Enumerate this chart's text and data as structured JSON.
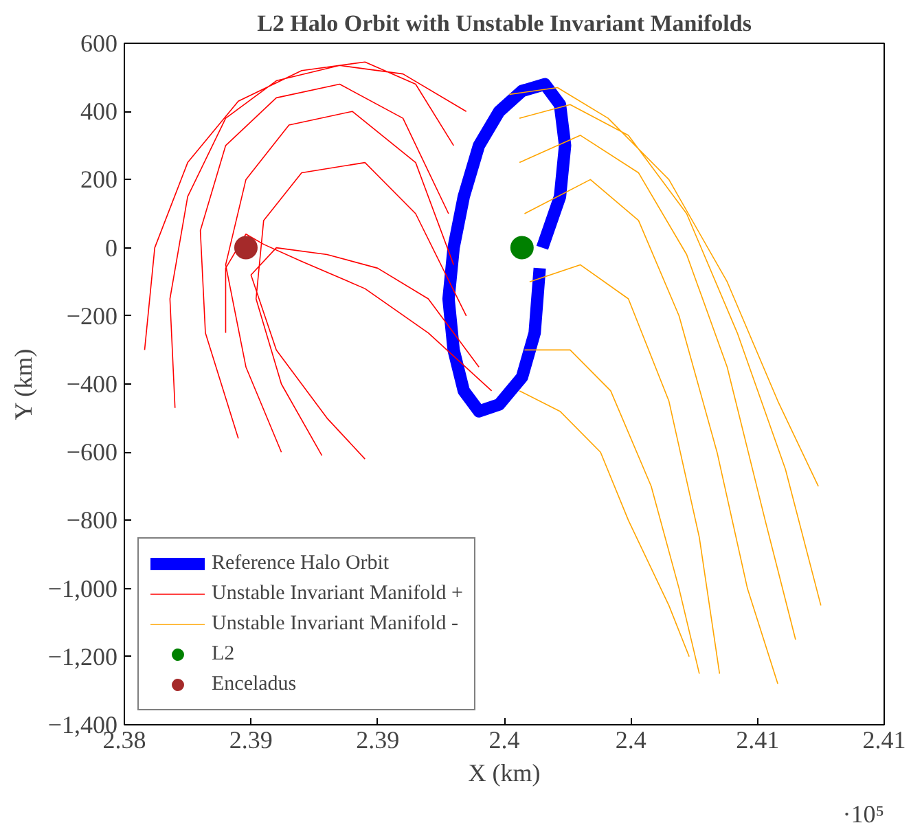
{
  "chart_data": {
    "type": "line",
    "title": "L2 Halo Orbit with Unstable Invariant Manifolds",
    "xlabel": "X (km)",
    "ylabel": "Y (km)",
    "annotations": [
      "·10⁵"
    ],
    "xlim": [
      2.38,
      2.41
    ],
    "ylim": [
      -1400,
      600
    ],
    "xticks": [
      2.38,
      {
        "value": 2.385,
        "label": "2.39"
      },
      2.39,
      {
        "value": 2.395,
        "label": "2.4"
      },
      2.4,
      {
        "value": 2.405,
        "label": "2.41"
      },
      2.41
    ],
    "yticks": [
      {
        "value": -1400,
        "label": "−1,400"
      },
      {
        "value": -1200,
        "label": "−1,200"
      },
      {
        "value": -1000,
        "label": "−1,000"
      },
      {
        "value": -800,
        "label": "−800"
      },
      {
        "value": -600,
        "label": "−600"
      },
      {
        "value": -400,
        "label": "−400"
      },
      {
        "value": -200,
        "label": "−200"
      },
      0,
      200,
      400,
      600
    ],
    "grid": false,
    "legend": "bottom left",
    "series": [
      {
        "name": "Reference Halo Orbit",
        "color": "#0000ff",
        "x": [
          2.3965,
          2.3972,
          2.3974,
          2.3972,
          2.3966,
          2.3957,
          2.3948,
          2.394,
          2.3934,
          2.393,
          2.3928,
          2.393,
          2.3934,
          2.394,
          2.3948,
          2.3957,
          2.3962,
          2.3964
        ],
        "values": [
          0,
          150,
          300,
          420,
          480,
          460,
          400,
          300,
          150,
          0,
          -150,
          -300,
          -420,
          -480,
          -460,
          -380,
          -250,
          -60
        ]
      },
      {
        "name": "Unstable Invariant Manifold +",
        "color": "#ff0000",
        "x": [
          2.393,
          2.3915,
          2.3895,
          2.387,
          2.3845,
          2.3825,
          2.3812,
          2.3808,
          null,
          2.3935,
          2.391,
          2.3885,
          2.386,
          2.384,
          2.3825,
          2.3818,
          2.382,
          null,
          2.3928,
          2.391,
          2.3885,
          2.386,
          2.384,
          2.383,
          2.3832,
          2.3845,
          null,
          2.393,
          2.3915,
          2.389,
          2.3865,
          2.3848,
          2.384,
          2.3848,
          2.3862,
          null,
          2.3935,
          2.3915,
          2.3895,
          2.387,
          2.3855,
          2.3852,
          2.3862,
          2.3878,
          null,
          2.394,
          2.392,
          2.39,
          2.388,
          2.386,
          2.385,
          2.386,
          2.388,
          2.3895,
          null,
          2.3945,
          2.392,
          2.3895,
          2.387,
          2.3855,
          2.3848,
          2.384,
          2.384
        ],
        "values": [
          300,
          480,
          545,
          520,
          430,
          250,
          0,
          -300,
          null,
          400,
          510,
          535,
          490,
          380,
          150,
          -150,
          -470,
          null,
          100,
          380,
          480,
          440,
          300,
          50,
          -250,
          -560,
          null,
          -50,
          250,
          400,
          360,
          200,
          -50,
          -350,
          -600,
          null,
          -200,
          100,
          250,
          220,
          80,
          -150,
          -400,
          -610,
          null,
          -350,
          -150,
          -60,
          -20,
          0,
          -80,
          -300,
          -500,
          -620,
          null,
          -420,
          -250,
          -120,
          -40,
          10,
          40,
          -60,
          -250
        ]
      },
      {
        "name": "Unstable Invariant Manifold -",
        "color": "#ffa500",
        "x": [
          2.3952,
          2.3971,
          2.3991,
          2.4015,
          2.4038,
          2.4058,
          2.4074,
          null,
          2.3956,
          2.3976,
          2.3999,
          2.4022,
          2.4042,
          2.4061,
          2.4075,
          null,
          2.3956,
          2.398,
          2.4003,
          2.4022,
          2.4038,
          2.4053,
          2.4065,
          null,
          2.3958,
          2.3984,
          2.4003,
          2.4019,
          2.4034,
          2.4046,
          2.4058,
          null,
          2.396,
          2.398,
          2.3999,
          2.4015,
          2.4027,
          2.4035,
          null,
          2.3958,
          2.3976,
          2.3992,
          2.4008,
          2.4019,
          2.4027,
          null,
          2.3956,
          2.3972,
          2.3988,
          2.3999,
          2.4015,
          2.4023
        ],
        "values": [
          450,
          470,
          380,
          200,
          -100,
          -450,
          -700,
          null,
          380,
          420,
          330,
          100,
          -250,
          -650,
          -1050,
          null,
          250,
          330,
          220,
          -20,
          -350,
          -800,
          -1150,
          null,
          100,
          200,
          80,
          -200,
          -600,
          -1000,
          -1280,
          null,
          -100,
          -50,
          -150,
          -450,
          -850,
          -1250,
          null,
          -300,
          -300,
          -420,
          -700,
          -1000,
          -1250,
          null,
          -420,
          -480,
          -600,
          -800,
          -1050,
          -1200
        ]
      },
      {
        "name": "L2",
        "type": "scatter",
        "marker": "circle",
        "color": "#008000",
        "x": [
          2.3957
        ],
        "values": [
          0
        ]
      },
      {
        "name": "Enceladus",
        "type": "scatter",
        "marker": "circle",
        "color": "#a52a2a",
        "x": [
          2.3848
        ],
        "values": [
          0
        ]
      }
    ]
  }
}
